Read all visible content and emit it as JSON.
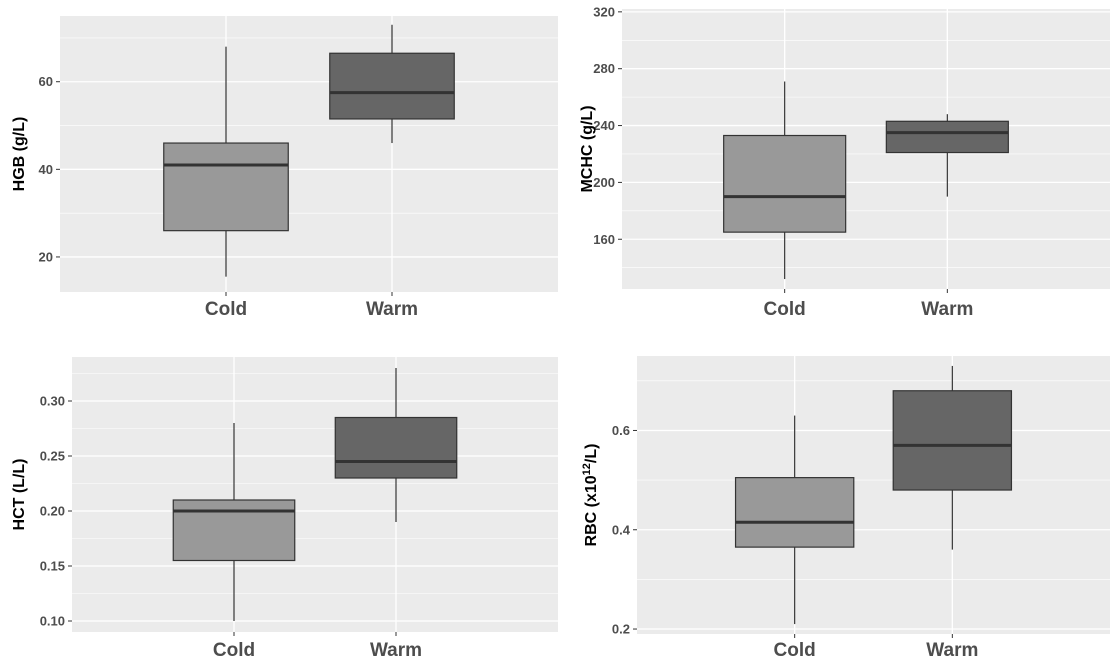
{
  "style": {
    "panel_bg": "#ebebeb",
    "grid_color": "#ffffff",
    "box_stroke": "#333333",
    "median_stroke": "#333333"
  },
  "chart_data": [
    {
      "id": "hgb",
      "type": "boxplot",
      "ylabel": "HGB (g/L)",
      "ylim": [
        12,
        75
      ],
      "yticks": [
        20,
        40,
        60
      ],
      "ytick_labels": [
        "20",
        "40",
        "60"
      ],
      "categories": [
        "Cold",
        "Warm"
      ],
      "boxes": [
        {
          "category": "Cold",
          "whisker_low": 15.5,
          "q1": 26,
          "median": 41,
          "q3": 46,
          "whisker_high": 68,
          "fill": "#999999"
        },
        {
          "category": "Warm",
          "whisker_low": 46,
          "q1": 51.5,
          "median": 57.5,
          "q3": 66.5,
          "whisker_high": 73,
          "fill": "#666666"
        }
      ]
    },
    {
      "id": "mchc",
      "type": "boxplot",
      "ylabel": "MCHC (g/L)",
      "ylim": [
        125,
        322
      ],
      "yticks": [
        160,
        200,
        240,
        280,
        320
      ],
      "ytick_labels": [
        "160",
        "200",
        "240",
        "280",
        "320"
      ],
      "categories": [
        "Cold",
        "Warm"
      ],
      "boxes": [
        {
          "category": "Cold",
          "whisker_low": 132,
          "q1": 165,
          "median": 190,
          "q3": 233,
          "whisker_high": 271,
          "fill": "#999999"
        },
        {
          "category": "Warm",
          "whisker_low": 190,
          "q1": 221,
          "median": 235,
          "q3": 243,
          "whisker_high": 248,
          "fill": "#666666"
        }
      ]
    },
    {
      "id": "hct",
      "type": "boxplot",
      "ylabel": "HCT (L/L)",
      "ylim": [
        0.09,
        0.34
      ],
      "yticks": [
        0.1,
        0.15,
        0.2,
        0.25,
        0.3
      ],
      "ytick_labels": [
        "0.10",
        "0.15",
        "0.20",
        "0.25",
        "0.30"
      ],
      "categories": [
        "Cold",
        "Warm"
      ],
      "boxes": [
        {
          "category": "Cold",
          "whisker_low": 0.1,
          "q1": 0.155,
          "median": 0.2,
          "q3": 0.21,
          "whisker_high": 0.28,
          "fill": "#999999"
        },
        {
          "category": "Warm",
          "whisker_low": 0.19,
          "q1": 0.23,
          "median": 0.245,
          "q3": 0.285,
          "whisker_high": 0.33,
          "fill": "#666666"
        }
      ]
    },
    {
      "id": "rbc",
      "type": "boxplot",
      "ylabel": "RBC (x10",
      "ylabel_sup": "12",
      "ylabel_tail": "/L)",
      "ylim": [
        0.19,
        0.75
      ],
      "yticks": [
        0.2,
        0.4,
        0.6
      ],
      "ytick_labels": [
        "0.2",
        "0.4",
        "0.6"
      ],
      "categories": [
        "Cold",
        "Warm"
      ],
      "boxes": [
        {
          "category": "Cold",
          "whisker_low": 0.21,
          "q1": 0.365,
          "median": 0.415,
          "q3": 0.505,
          "whisker_high": 0.63,
          "fill": "#999999"
        },
        {
          "category": "Warm",
          "whisker_low": 0.36,
          "q1": 0.48,
          "median": 0.57,
          "q3": 0.68,
          "whisker_high": 0.73,
          "fill": "#666666"
        }
      ]
    }
  ]
}
